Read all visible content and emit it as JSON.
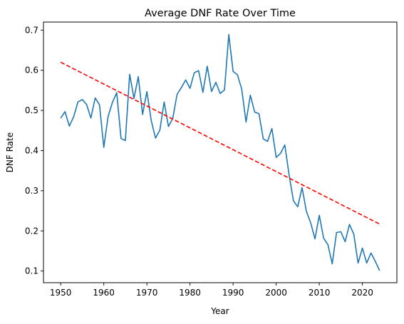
{
  "chart_data": {
    "type": "line",
    "title": "Average DNF Rate Over Time",
    "xlabel": "Year",
    "ylabel": "DNF Rate",
    "xlim": [
      1946,
      2028
    ],
    "ylim": [
      0.071,
      0.72
    ],
    "xticks": [
      1950,
      1960,
      1970,
      1980,
      1990,
      2000,
      2010,
      2020
    ],
    "yticks": [
      0.1,
      0.2,
      0.3,
      0.4,
      0.5,
      0.6,
      0.7
    ],
    "ytick_labels": [
      "0.1",
      "0.2",
      "0.3",
      "0.4",
      "0.5",
      "0.6",
      "0.7"
    ],
    "grid": false,
    "legend": "none",
    "series": [
      {
        "color": "#1f77b4",
        "style": "solid",
        "x": [
          1950,
          1951,
          1952,
          1953,
          1954,
          1955,
          1956,
          1957,
          1958,
          1959,
          1960,
          1961,
          1962,
          1963,
          1964,
          1965,
          1966,
          1967,
          1968,
          1969,
          1970,
          1971,
          1972,
          1973,
          1974,
          1975,
          1976,
          1977,
          1978,
          1979,
          1980,
          1981,
          1982,
          1983,
          1984,
          1985,
          1986,
          1987,
          1988,
          1989,
          1990,
          1991,
          1992,
          1993,
          1994,
          1995,
          1996,
          1997,
          1998,
          1999,
          2000,
          2001,
          2002,
          2003,
          2004,
          2005,
          2006,
          2007,
          2008,
          2009,
          2010,
          2011,
          2012,
          2013,
          2014,
          2015,
          2016,
          2017,
          2018,
          2019,
          2020,
          2021,
          2022,
          2023,
          2024
        ],
        "y": [
          0.481,
          0.497,
          0.461,
          0.484,
          0.521,
          0.527,
          0.515,
          0.481,
          0.531,
          0.514,
          0.408,
          0.485,
          0.52,
          0.544,
          0.43,
          0.425,
          0.59,
          0.53,
          0.584,
          0.49,
          0.547,
          0.475,
          0.431,
          0.451,
          0.521,
          0.46,
          0.48,
          0.54,
          0.557,
          0.576,
          0.555,
          0.594,
          0.599,
          0.545,
          0.61,
          0.547,
          0.57,
          0.542,
          0.551,
          0.689,
          0.597,
          0.589,
          0.553,
          0.471,
          0.538,
          0.496,
          0.492,
          0.429,
          0.423,
          0.455,
          0.383,
          0.393,
          0.414,
          0.339,
          0.275,
          0.26,
          0.308,
          0.249,
          0.22,
          0.18,
          0.239,
          0.182,
          0.166,
          0.118,
          0.196,
          0.198,
          0.173,
          0.216,
          0.192,
          0.12,
          0.157,
          0.12,
          0.145,
          0.124,
          0.101
        ]
      },
      {
        "color": "#ff0000",
        "style": "dashed",
        "x": [
          1950,
          2024
        ],
        "y": [
          0.62,
          0.217
        ]
      }
    ]
  }
}
